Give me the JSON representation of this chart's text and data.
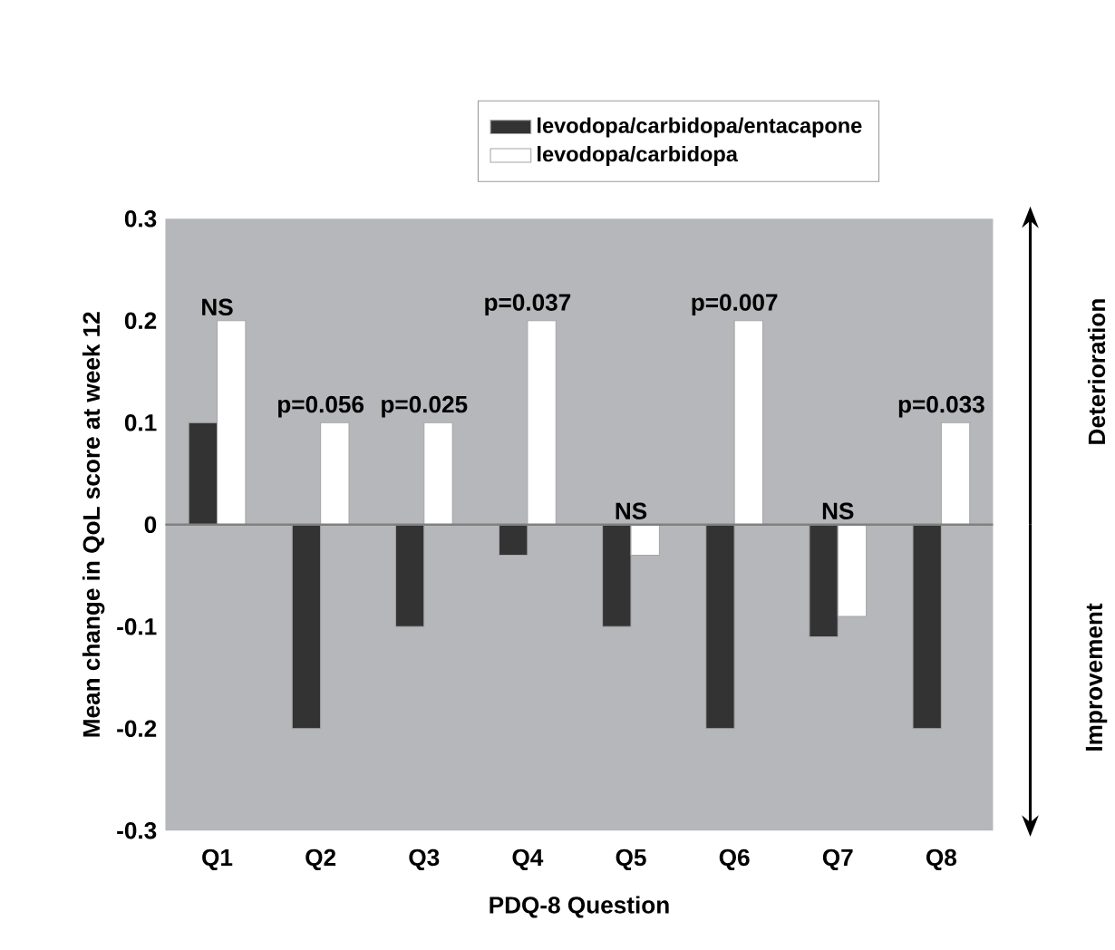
{
  "chart_data": {
    "type": "bar",
    "xlabel": "PDQ-8 Question",
    "ylabel": "Mean change in QoL score at week 12",
    "categories": [
      "Q1",
      "Q2",
      "Q3",
      "Q4",
      "Q5",
      "Q6",
      "Q7",
      "Q8"
    ],
    "series": [
      {
        "name": "levodopa/carbidopa/entacapone",
        "color": "#333333",
        "values": [
          0.1,
          -0.2,
          -0.1,
          -0.03,
          -0.1,
          -0.2,
          -0.11,
          -0.2
        ]
      },
      {
        "name": "levodopa/carbidopa",
        "color": "#ffffff",
        "values": [
          0.2,
          0.1,
          0.1,
          0.2,
          -0.03,
          0.2,
          -0.09,
          0.1
        ]
      }
    ],
    "ylim": [
      -0.3,
      0.3
    ],
    "yticks": [
      -0.3,
      -0.2,
      -0.1,
      0,
      0.1,
      0.2,
      0.3
    ],
    "legend": "top",
    "grid": false,
    "ref_lines": [
      {
        "axis": "y",
        "value": 0,
        "color": "#808080"
      }
    ],
    "annotations": [
      {
        "text": "NS",
        "x": "Q1",
        "y": 0.2
      },
      {
        "text": "p=0.056",
        "x": "Q2",
        "y": 0.1
      },
      {
        "text": "p=0.025",
        "x": "Q3",
        "y": 0.1
      },
      {
        "text": "p=0.037",
        "x": "Q4",
        "y": 0.2
      },
      {
        "text": "NS",
        "x": "Q5",
        "y": 0
      },
      {
        "text": "p=0.007",
        "x": "Q6",
        "y": 0.2
      },
      {
        "text": "NS",
        "x": "Q7",
        "y": 0
      },
      {
        "text": "p=0.033",
        "x": "Q8",
        "y": 0.1
      },
      "Deterioration",
      "Improvement"
    ]
  }
}
